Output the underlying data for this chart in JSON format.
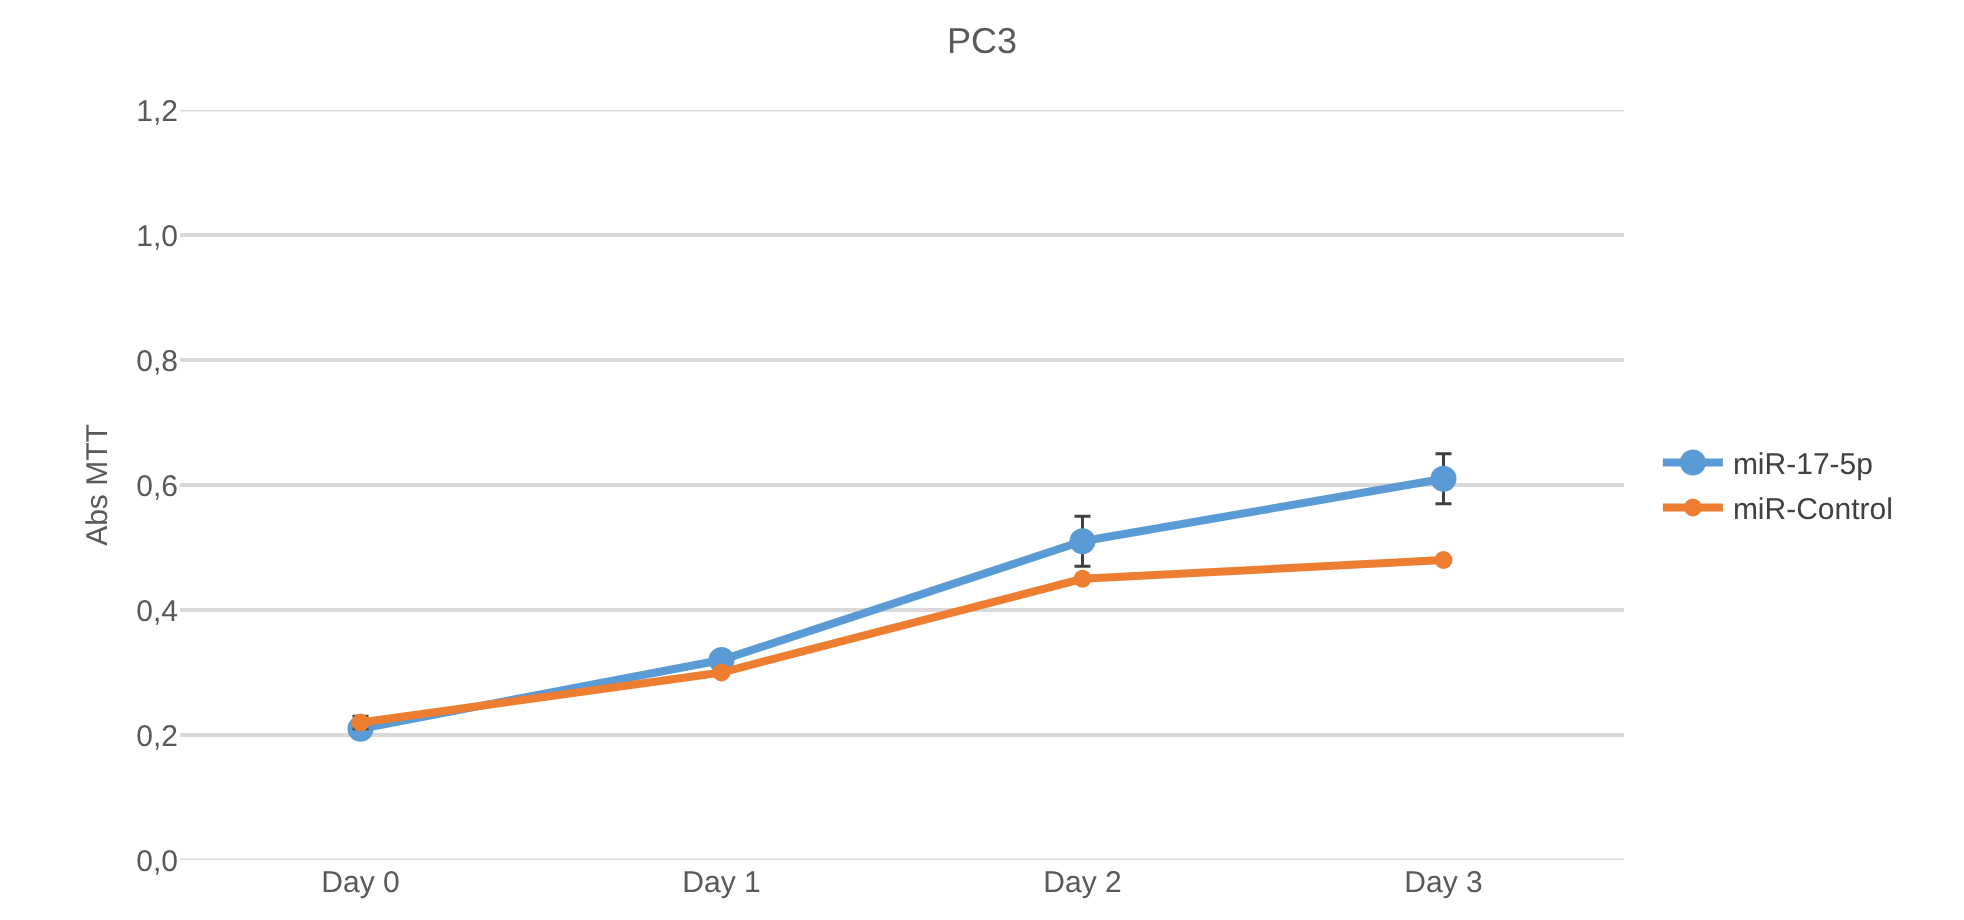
{
  "chart_data": {
    "type": "line",
    "title": "PC3",
    "ylabel": "Abs MTT",
    "categories": [
      "Day 0",
      "Day 1",
      "Day 2",
      "Day 3"
    ],
    "series": [
      {
        "name": "miR-17-5p",
        "color": "#5b9bd5",
        "values": [
          0.21,
          0.32,
          0.51,
          0.61
        ],
        "errors": [
          null,
          null,
          0.04,
          0.04
        ]
      },
      {
        "name": "miR-Control",
        "color": "#ed7d31",
        "values": [
          0.22,
          0.3,
          0.45,
          0.48
        ],
        "errors": [
          0.01,
          null,
          null,
          null
        ]
      }
    ],
    "ylim": [
      0,
      1.2
    ],
    "yticks": [
      {
        "value": 0,
        "label": "0,0"
      },
      {
        "value": 0.2,
        "label": "0,2"
      },
      {
        "value": 0.4,
        "label": "0,4"
      },
      {
        "value": 0.6,
        "label": "0,6"
      },
      {
        "value": 0.8,
        "label": "0,8"
      },
      {
        "value": 1.0,
        "label": "1,0"
      },
      {
        "value": 1.2,
        "label": "1,2"
      }
    ],
    "grid": "y",
    "legend": "right",
    "marker": "circle",
    "line_style": "solid"
  }
}
